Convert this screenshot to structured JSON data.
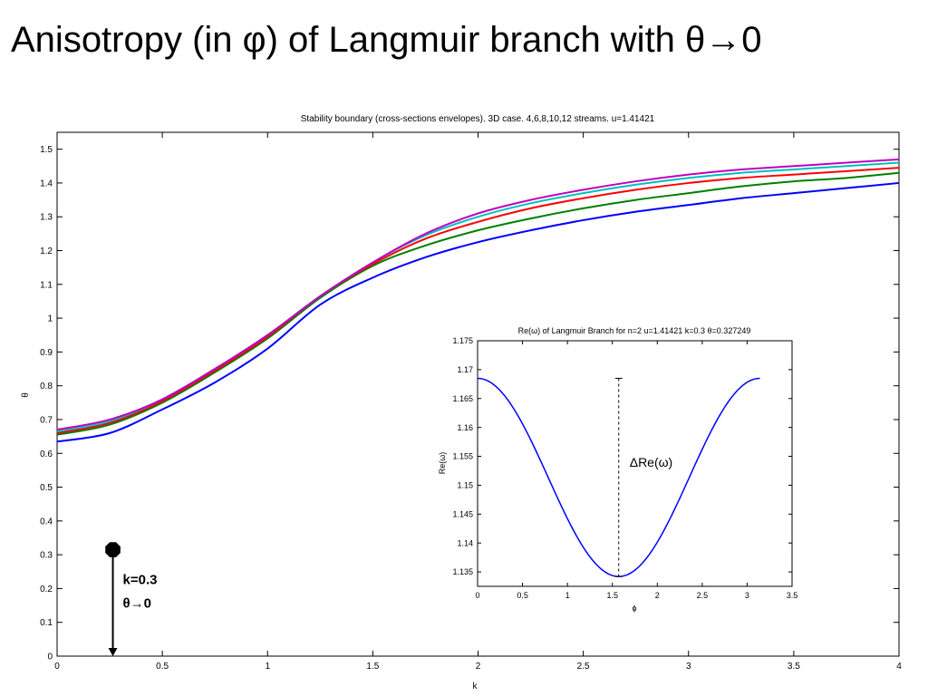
{
  "slide": {
    "title": "Anisotropy (in φ) of Langmuir branch with θ→0"
  },
  "chart_data": [
    {
      "id": "main",
      "type": "line",
      "title": "Stability boundary (cross-sections envelopes). 3D case. 4,6,8,10,12 streams. u=1.41421",
      "xlabel": "k",
      "ylabel": "θ",
      "xlim": [
        0,
        4
      ],
      "ylim": [
        0,
        1.55
      ],
      "xticks": [
        0,
        0.5,
        1,
        1.5,
        2,
        2.5,
        3,
        3.5,
        4
      ],
      "xtick_labels": [
        "0",
        "0.5",
        "1",
        "1.5",
        "2",
        "2.5",
        "3",
        "3.5",
        "4"
      ],
      "yticks": [
        0,
        0.1,
        0.2,
        0.3,
        0.4,
        0.5,
        0.6,
        0.7,
        0.8,
        0.9,
        1,
        1.1,
        1.2,
        1.3,
        1.4,
        1.5
      ],
      "ytick_labels": [
        "0",
        "0.1",
        "0.2",
        "0.3",
        "0.4",
        "0.5",
        "0.6",
        "0.7",
        "0.8",
        "0.9",
        "1",
        "1.1",
        "1.2",
        "1.3",
        "1.4",
        "1.5"
      ],
      "grid": false,
      "x": [
        0,
        0.25,
        0.5,
        0.75,
        1,
        1.25,
        1.5,
        1.75,
        2,
        2.25,
        2.5,
        2.75,
        3,
        3.25,
        3.5,
        3.75,
        4
      ],
      "series": [
        {
          "color": "#0000ff",
          "values": [
            0.635,
            0.66,
            0.73,
            0.81,
            0.91,
            1.04,
            1.12,
            1.18,
            1.225,
            1.26,
            1.29,
            1.315,
            1.335,
            1.355,
            1.37,
            1.385,
            1.4
          ]
        },
        {
          "color": "#008000",
          "values": [
            0.655,
            0.685,
            0.75,
            0.84,
            0.94,
            1.06,
            1.155,
            1.215,
            1.26,
            1.295,
            1.325,
            1.35,
            1.37,
            1.39,
            1.405,
            1.415,
            1.43
          ]
        },
        {
          "color": "#ff0000",
          "values": [
            0.66,
            0.69,
            0.755,
            0.845,
            0.945,
            1.065,
            1.16,
            1.235,
            1.285,
            1.325,
            1.355,
            1.38,
            1.4,
            1.415,
            1.425,
            1.435,
            1.445
          ]
        },
        {
          "color": "#00bfbf",
          "values": [
            0.665,
            0.695,
            0.76,
            0.85,
            0.95,
            1.065,
            1.165,
            1.245,
            1.3,
            1.34,
            1.37,
            1.395,
            1.415,
            1.43,
            1.44,
            1.45,
            1.46
          ]
        },
        {
          "color": "#bf00bf",
          "values": [
            0.67,
            0.7,
            0.76,
            0.85,
            0.95,
            1.065,
            1.165,
            1.25,
            1.31,
            1.35,
            1.38,
            1.405,
            1.425,
            1.44,
            1.45,
            1.46,
            1.47
          ]
        }
      ],
      "annotation": {
        "x": 0.265,
        "y_top": 0.315,
        "y_bottom": 0,
        "lines": [
          "k=0.3",
          "θ→0"
        ],
        "color": "#000000"
      }
    },
    {
      "id": "inset",
      "type": "line",
      "title": "Re(ω) of Langmuir Branch for n=2 u=1.41421 k=0.3 θ=0.327249",
      "xlabel": "ϕ",
      "ylabel": "Re(ω)",
      "xlim": [
        0,
        3.5
      ],
      "ylim": [
        1.1325,
        1.175
      ],
      "xticks": [
        0,
        0.5,
        1,
        1.5,
        2,
        2.5,
        3,
        3.5
      ],
      "xtick_labels": [
        "0",
        "0.5",
        "1",
        "1.5",
        "2",
        "2.5",
        "3",
        "3.5"
      ],
      "yticks": [
        1.135,
        1.14,
        1.145,
        1.15,
        1.155,
        1.16,
        1.165,
        1.17,
        1.175
      ],
      "ytick_labels": [
        "1.135",
        "1.14",
        "1.145",
        "1.15",
        "1.155",
        "1.16",
        "1.165",
        "1.17",
        "1.175"
      ],
      "grid": false,
      "series": [
        {
          "color": "#0000ff",
          "phi_max": 3.14159,
          "re_max": 1.1685,
          "re_min": 1.1342
        }
      ],
      "annotation": {
        "x": 1.5708,
        "y_top": 1.1685,
        "y_bottom": 1.1342,
        "label": "ΔRe(ω)",
        "style": "dashed"
      }
    }
  ]
}
